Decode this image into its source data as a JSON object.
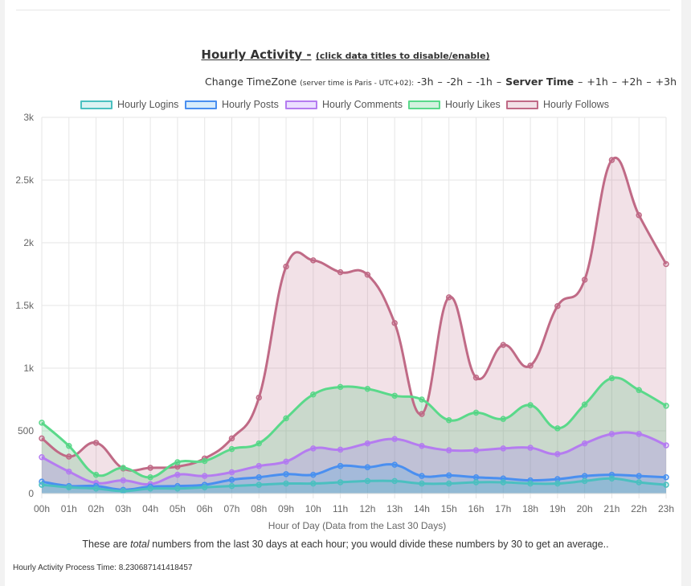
{
  "title": {
    "main": "Hourly Activity -",
    "sub": "(click data titles to disable/enable)"
  },
  "timezone": {
    "label": "Change TimeZone",
    "note": "(server time is Paris - UTC+02):",
    "options": [
      "-3h",
      "-2h",
      "-1h",
      "Server Time",
      "+1h",
      "+2h",
      "+3h"
    ],
    "current_index": 3
  },
  "footnote": {
    "before": "These are ",
    "emph": "total",
    "after": " numbers from the last 30 days at each hour; you would divide these numbers by 30 to get an average.."
  },
  "process_time": "Hourly Activity Process Time: 8.230687141418457",
  "chart_data": {
    "type": "area",
    "xlabel": "Hour of Day (Data from the Last 30 Days)",
    "ylabel": "",
    "categories": [
      "00h",
      "01h",
      "02h",
      "03h",
      "04h",
      "05h",
      "06h",
      "07h",
      "08h",
      "09h",
      "10h",
      "11h",
      "12h",
      "13h",
      "14h",
      "15h",
      "16h",
      "17h",
      "18h",
      "19h",
      "20h",
      "21h",
      "22h",
      "23h"
    ],
    "ylim": [
      0,
      3000
    ],
    "yticks": [
      0,
      500,
      1000,
      1500,
      2000,
      2500,
      3000
    ],
    "ytick_labels": [
      "0",
      "500",
      "1k",
      "1.5k",
      "2k",
      "2.5k",
      "3k"
    ],
    "grid": true,
    "legend_position": "top",
    "series": [
      {
        "name": "Hourly Logins",
        "color": "#4bc0c0",
        "fill": "rgba(75,192,192,0.2)",
        "values": [
          70,
          50,
          40,
          20,
          40,
          40,
          50,
          60,
          70,
          80,
          80,
          90,
          100,
          100,
          80,
          80,
          90,
          90,
          80,
          80,
          100,
          120,
          90,
          70
        ]
      },
      {
        "name": "Hourly Posts",
        "color": "#4a8ff0",
        "fill": "rgba(54,162,235,0.2)",
        "values": [
          95,
          60,
          60,
          30,
          55,
          60,
          70,
          110,
          130,
          155,
          150,
          220,
          210,
          230,
          140,
          145,
          130,
          120,
          105,
          115,
          140,
          150,
          140,
          130
        ]
      },
      {
        "name": "Hourly Comments",
        "color": "#b57cf0",
        "fill": "rgba(153,102,255,0.2)",
        "values": [
          290,
          175,
          85,
          105,
          75,
          150,
          140,
          170,
          220,
          255,
          360,
          350,
          400,
          435,
          380,
          345,
          345,
          360,
          365,
          315,
          400,
          475,
          475,
          385
        ]
      },
      {
        "name": "Hourly Likes",
        "color": "#5ad98a",
        "fill": "rgba(60,190,110,0.22)",
        "values": [
          565,
          380,
          150,
          205,
          130,
          250,
          260,
          355,
          400,
          600,
          790,
          850,
          835,
          780,
          750,
          585,
          645,
          595,
          705,
          520,
          710,
          920,
          825,
          700
        ]
      },
      {
        "name": "Hourly Follows",
        "color": "#c06a86",
        "fill": "rgba(192,106,134,0.2)",
        "values": [
          440,
          295,
          405,
          200,
          205,
          215,
          280,
          440,
          765,
          1810,
          1860,
          1765,
          1745,
          1360,
          635,
          1565,
          925,
          1185,
          1020,
          1495,
          1705,
          2660,
          2220,
          1830
        ]
      }
    ]
  }
}
